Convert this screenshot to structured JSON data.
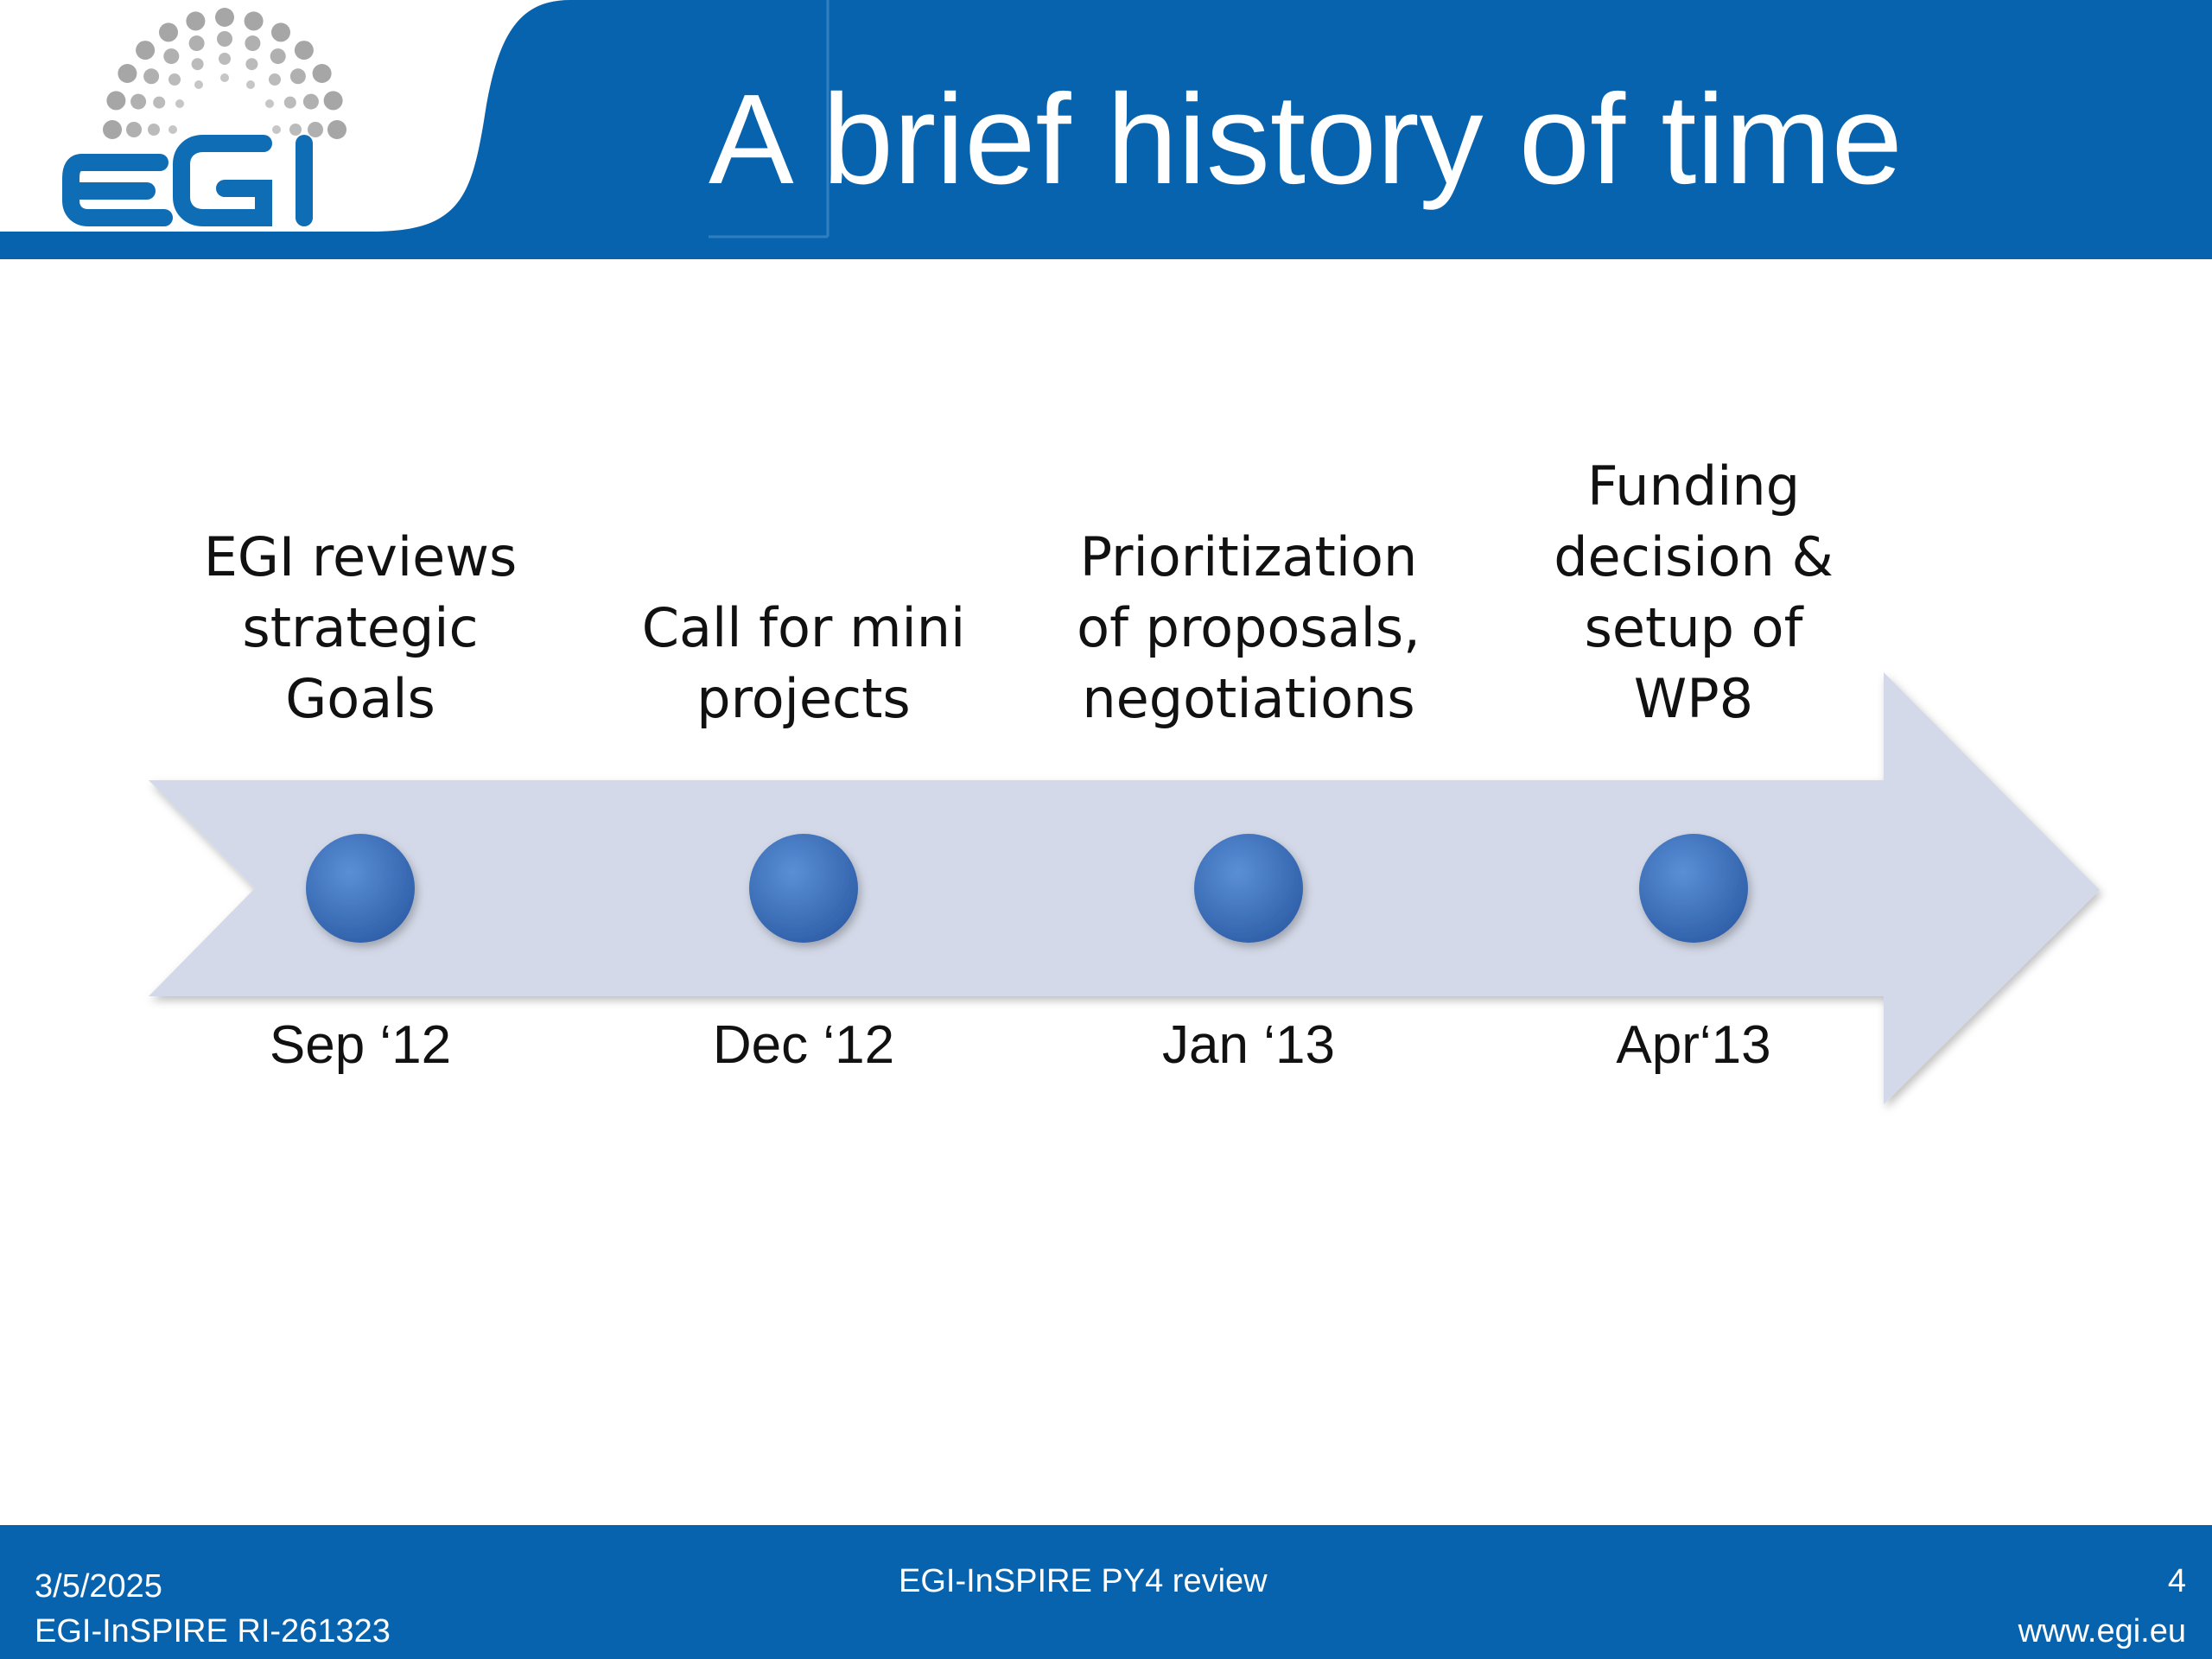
{
  "slide": {
    "title": "A brief history of time"
  },
  "logo": {
    "text": "egi",
    "icon": "egi-dots-logo"
  },
  "timeline": {
    "events": [
      {
        "label": "EGI reviews\nstrategic\nGoals",
        "date": "Sep ‘12"
      },
      {
        "label": "Call for mini\nprojects",
        "date": "Dec ‘12"
      },
      {
        "label": "Prioritization\nof proposals,\nnegotiations",
        "date": "Jan ‘13"
      },
      {
        "label": "Funding\ndecision &\nsetup of\nWP8",
        "date": "Apr‘13"
      }
    ]
  },
  "footer": {
    "date": "3/5/2025",
    "project_id": "EGI-InSPIRE RI-261323",
    "center_text": "EGI-InSPIRE PY4 review",
    "page_number": "4",
    "website": "www.egi.eu"
  },
  "colors": {
    "header_blue": "#0863ae",
    "arrow_fill": "#d3d9e8",
    "dot_blue": "#3f74c0",
    "logo_blue": "#0f6db5",
    "logo_gray": "#a9a9a9"
  }
}
